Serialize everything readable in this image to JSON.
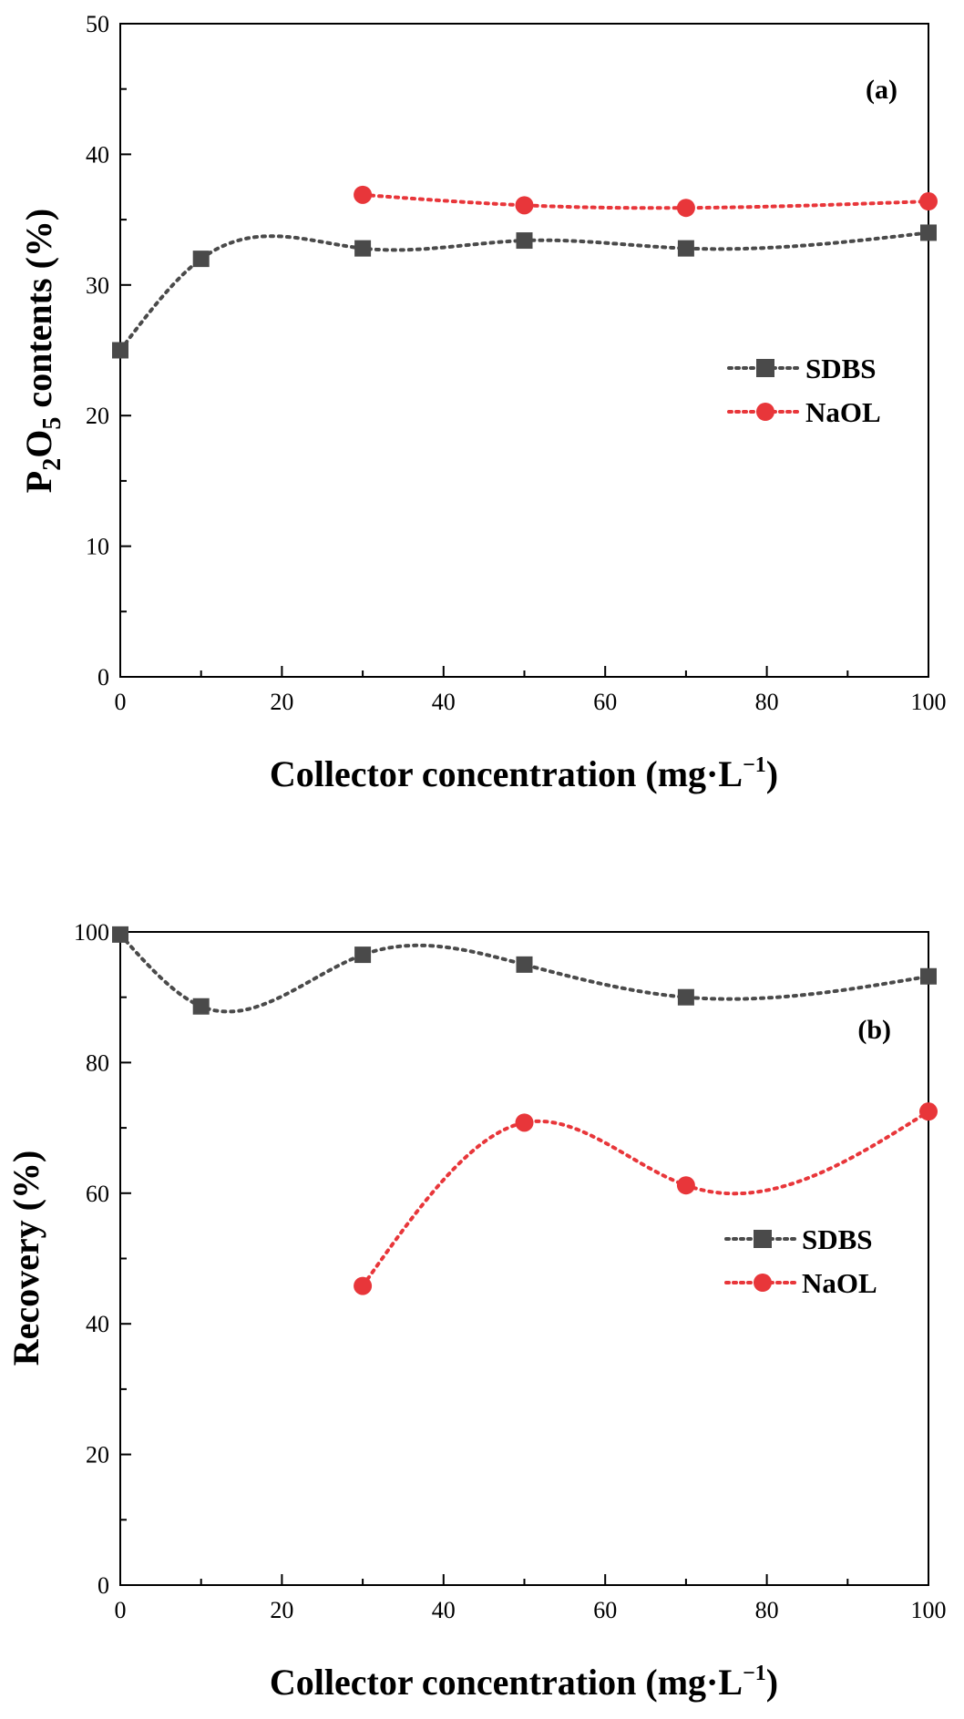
{
  "chart_data": [
    {
      "type": "line",
      "panel_label": "(a)",
      "title": "",
      "xlabel": "Collector concentration (mg·L",
      "xlabel_sup": "−1",
      "xlabel_close": ")",
      "ylabel": {
        "p": "P",
        "sub1": "2",
        "o": "O",
        "sub2": "5",
        "rest": " contents (%)"
      },
      "xlim": [
        0,
        100
      ],
      "ylim": [
        0,
        50
      ],
      "xticks": [
        0,
        20,
        40,
        60,
        80,
        100
      ],
      "yticks": [
        0,
        10,
        20,
        30,
        40,
        50
      ],
      "legend_position": "center-right",
      "series": [
        {
          "name": "SDBS",
          "color": "#4a4a4a",
          "marker": "square",
          "x": [
            0,
            10,
            30,
            50,
            70,
            100
          ],
          "y": [
            25.0,
            32.0,
            32.8,
            33.4,
            32.8,
            34.0
          ]
        },
        {
          "name": "NaOL",
          "color": "#e8363a",
          "marker": "circle",
          "x": [
            30,
            50,
            70,
            100
          ],
          "y": [
            36.9,
            36.1,
            35.9,
            36.4
          ]
        }
      ]
    },
    {
      "type": "line",
      "panel_label": "(b)",
      "title": "",
      "xlabel": "Collector concentration (mg·L",
      "xlabel_sup": "−1",
      "xlabel_close": ")",
      "ylabel": "Recovery (%)",
      "xlim": [
        0,
        100
      ],
      "ylim": [
        0,
        100
      ],
      "xticks": [
        0,
        20,
        40,
        60,
        80,
        100
      ],
      "yticks": [
        0,
        20,
        40,
        60,
        80,
        100
      ],
      "legend_position": "center-right",
      "series": [
        {
          "name": "SDBS",
          "color": "#4a4a4a",
          "marker": "square",
          "x": [
            0,
            10,
            30,
            50,
            70,
            100
          ],
          "y": [
            99.6,
            88.6,
            96.5,
            95.0,
            90.0,
            93.2
          ]
        },
        {
          "name": "NaOL",
          "color": "#e8363a",
          "marker": "circle",
          "x": [
            30,
            50,
            70,
            100
          ],
          "y": [
            45.8,
            70.8,
            61.2,
            72.5
          ]
        }
      ]
    }
  ]
}
